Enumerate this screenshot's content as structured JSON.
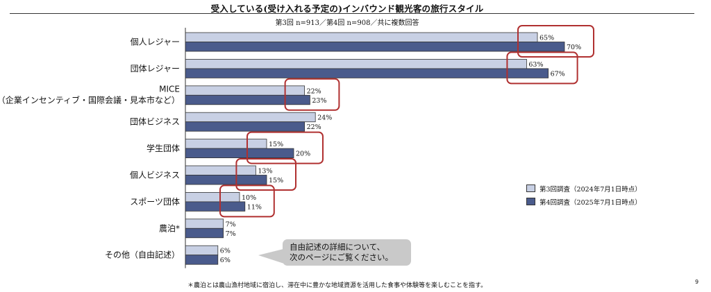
{
  "title": "受入している(受け入れる予定の)インバウンド観光客の旅行スタイル",
  "subtitle": "第3回 n=913／第4回 n=908／共に複数回答",
  "chart_data": {
    "type": "bar",
    "orientation": "horizontal",
    "categories": [
      [
        "個人レジャー"
      ],
      [
        "団体レジャー"
      ],
      [
        "MICE",
        "（企業インセンティブ・国際会議・見本市など）"
      ],
      [
        "団体ビジネス"
      ],
      [
        "学生団体"
      ],
      [
        "個人ビジネス"
      ],
      [
        "スポーツ団体"
      ],
      [
        "農泊*"
      ],
      [
        "その他（自由記述）"
      ]
    ],
    "series": [
      {
        "name": "第3回調査（2024年7月1日時点）",
        "color": "#c8d0e4",
        "values": [
          65,
          63,
          22,
          24,
          15,
          13,
          10,
          7,
          6
        ],
        "labels": [
          "65%",
          "63%",
          "22%",
          "24%",
          "15%",
          "13%",
          "10%",
          "7%",
          "6%"
        ]
      },
      {
        "name": "第4回調査（2025年7月1日時点）",
        "color": "#4a5b8c",
        "values": [
          70,
          67,
          23,
          22,
          20,
          15,
          11,
          7,
          6
        ],
        "labels": [
          "70%",
          "67%",
          "23%",
          "22%",
          "20%",
          "15%",
          "11%",
          "7%",
          "6%"
        ]
      }
    ],
    "highlighted_categories": [
      0,
      1,
      2,
      4,
      5,
      6
    ],
    "highlight_color": "#b03030",
    "xlim": [
      0,
      100
    ],
    "grid": false,
    "legend": "right"
  },
  "callout": {
    "line1": "自由記述の詳細について、",
    "line2": "次のページにご覧ください。"
  },
  "footnote": "＊農泊とは農山漁村地域に宿泊し、滞在中に豊かな地域資源を活用した食事や体験等を楽しむことを指す。",
  "page_number": "9"
}
